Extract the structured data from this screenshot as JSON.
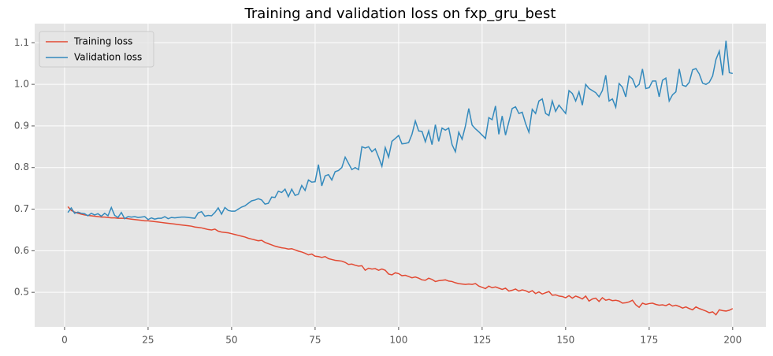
{
  "chart_data": {
    "type": "line",
    "title": "Training and validation loss on fxp_gru_best",
    "x": [
      1,
      2,
      3,
      4,
      5,
      6,
      7,
      8,
      9,
      10,
      11,
      12,
      13,
      14,
      15,
      16,
      17,
      18,
      19,
      20,
      21,
      22,
      23,
      24,
      25,
      26,
      27,
      28,
      29,
      30,
      31,
      32,
      33,
      34,
      35,
      36,
      37,
      38,
      39,
      40,
      41,
      42,
      43,
      44,
      45,
      46,
      47,
      48,
      49,
      50,
      51,
      52,
      53,
      54,
      55,
      56,
      57,
      58,
      59,
      60,
      61,
      62,
      63,
      64,
      65,
      66,
      67,
      68,
      69,
      70,
      71,
      72,
      73,
      74,
      75,
      76,
      77,
      78,
      79,
      80,
      81,
      82,
      83,
      84,
      85,
      86,
      87,
      88,
      89,
      90,
      91,
      92,
      93,
      94,
      95,
      96,
      97,
      98,
      99,
      100,
      101,
      102,
      103,
      104,
      105,
      106,
      107,
      108,
      109,
      110,
      111,
      112,
      113,
      114,
      115,
      116,
      117,
      118,
      119,
      120,
      121,
      122,
      123,
      124,
      125,
      126,
      127,
      128,
      129,
      130,
      131,
      132,
      133,
      134,
      135,
      136,
      137,
      138,
      139,
      140,
      141,
      142,
      143,
      144,
      145,
      146,
      147,
      148,
      149,
      150,
      151,
      152,
      153,
      154,
      155,
      156,
      157,
      158,
      159,
      160,
      161,
      162,
      163,
      164,
      165,
      166,
      167,
      168,
      169,
      170,
      171,
      172,
      173,
      174,
      175,
      176,
      177,
      178,
      179,
      180,
      181,
      182,
      183,
      184,
      185,
      186,
      187,
      188,
      189,
      190,
      191,
      192,
      193,
      194,
      195,
      196,
      197,
      198,
      199,
      200
    ],
    "series": [
      {
        "name": "Training loss",
        "color": "#e24a33",
        "values": [
          0.706,
          0.697,
          0.693,
          0.69,
          0.688,
          0.686,
          0.685,
          0.684,
          0.683,
          0.682,
          0.681,
          0.681,
          0.68,
          0.679,
          0.679,
          0.678,
          0.678,
          0.678,
          0.677,
          0.676,
          0.675,
          0.674,
          0.673,
          0.672,
          0.672,
          0.671,
          0.67,
          0.669,
          0.668,
          0.667,
          0.666,
          0.665,
          0.664,
          0.663,
          0.662,
          0.661,
          0.66,
          0.659,
          0.657,
          0.656,
          0.655,
          0.653,
          0.651,
          0.65,
          0.652,
          0.647,
          0.645,
          0.644,
          0.643,
          0.641,
          0.639,
          0.637,
          0.635,
          0.633,
          0.63,
          0.628,
          0.626,
          0.624,
          0.625,
          0.62,
          0.617,
          0.614,
          0.611,
          0.609,
          0.607,
          0.606,
          0.604,
          0.605,
          0.602,
          0.599,
          0.597,
          0.594,
          0.59,
          0.592,
          0.587,
          0.586,
          0.584,
          0.586,
          0.581,
          0.579,
          0.577,
          0.576,
          0.575,
          0.572,
          0.567,
          0.568,
          0.565,
          0.563,
          0.564,
          0.553,
          0.558,
          0.556,
          0.557,
          0.553,
          0.556,
          0.553,
          0.544,
          0.542,
          0.547,
          0.545,
          0.54,
          0.541,
          0.538,
          0.535,
          0.537,
          0.534,
          0.53,
          0.529,
          0.534,
          0.531,
          0.526,
          0.528,
          0.529,
          0.53,
          0.527,
          0.526,
          0.523,
          0.521,
          0.52,
          0.519,
          0.52,
          0.519,
          0.521,
          0.515,
          0.512,
          0.509,
          0.515,
          0.511,
          0.513,
          0.51,
          0.507,
          0.51,
          0.503,
          0.505,
          0.508,
          0.503,
          0.506,
          0.504,
          0.5,
          0.504,
          0.497,
          0.501,
          0.496,
          0.499,
          0.502,
          0.493,
          0.494,
          0.491,
          0.49,
          0.487,
          0.492,
          0.486,
          0.491,
          0.488,
          0.484,
          0.491,
          0.479,
          0.484,
          0.486,
          0.478,
          0.487,
          0.481,
          0.483,
          0.48,
          0.481,
          0.479,
          0.474,
          0.475,
          0.477,
          0.481,
          0.47,
          0.464,
          0.474,
          0.471,
          0.473,
          0.474,
          0.471,
          0.469,
          0.47,
          0.468,
          0.472,
          0.467,
          0.469,
          0.466,
          0.462,
          0.465,
          0.461,
          0.458,
          0.465,
          0.461,
          0.458,
          0.455,
          0.451,
          0.453,
          0.446,
          0.458,
          0.456,
          0.455,
          0.457,
          0.461
        ]
      },
      {
        "name": "Validation loss",
        "color": "#348abd",
        "values": [
          0.692,
          0.703,
          0.69,
          0.693,
          0.69,
          0.689,
          0.684,
          0.69,
          0.686,
          0.689,
          0.683,
          0.69,
          0.684,
          0.704,
          0.685,
          0.68,
          0.692,
          0.677,
          0.682,
          0.681,
          0.682,
          0.68,
          0.681,
          0.682,
          0.675,
          0.679,
          0.676,
          0.678,
          0.678,
          0.682,
          0.677,
          0.68,
          0.679,
          0.68,
          0.681,
          0.681,
          0.68,
          0.679,
          0.678,
          0.691,
          0.694,
          0.683,
          0.685,
          0.684,
          0.692,
          0.703,
          0.688,
          0.704,
          0.697,
          0.695,
          0.695,
          0.7,
          0.705,
          0.708,
          0.714,
          0.72,
          0.722,
          0.725,
          0.722,
          0.712,
          0.714,
          0.729,
          0.728,
          0.743,
          0.74,
          0.748,
          0.73,
          0.748,
          0.733,
          0.736,
          0.757,
          0.745,
          0.77,
          0.765,
          0.766,
          0.807,
          0.756,
          0.78,
          0.783,
          0.77,
          0.79,
          0.793,
          0.8,
          0.825,
          0.81,
          0.795,
          0.8,
          0.795,
          0.85,
          0.847,
          0.85,
          0.838,
          0.845,
          0.825,
          0.803,
          0.848,
          0.825,
          0.863,
          0.87,
          0.877,
          0.857,
          0.858,
          0.86,
          0.88,
          0.912,
          0.888,
          0.887,
          0.862,
          0.888,
          0.855,
          0.903,
          0.863,
          0.895,
          0.89,
          0.895,
          0.855,
          0.838,
          0.885,
          0.868,
          0.9,
          0.942,
          0.902,
          0.893,
          0.886,
          0.878,
          0.87,
          0.92,
          0.915,
          0.948,
          0.88,
          0.924,
          0.878,
          0.91,
          0.942,
          0.946,
          0.93,
          0.933,
          0.906,
          0.885,
          0.94,
          0.93,
          0.96,
          0.965,
          0.93,
          0.925,
          0.96,
          0.935,
          0.95,
          0.94,
          0.93,
          0.985,
          0.978,
          0.96,
          0.982,
          0.95,
          1.0,
          0.99,
          0.985,
          0.98,
          0.97,
          0.985,
          1.022,
          0.96,
          0.965,
          0.945,
          1.002,
          0.993,
          0.97,
          1.02,
          1.013,
          0.993,
          1.0,
          1.037,
          0.99,
          0.992,
          1.008,
          1.008,
          0.97,
          1.01,
          1.015,
          0.96,
          0.975,
          0.982,
          1.037,
          0.998,
          0.995,
          1.005,
          1.035,
          1.038,
          1.025,
          1.003,
          1.0,
          1.005,
          1.02,
          1.06,
          1.08,
          1.022,
          1.105,
          1.028,
          1.026
        ]
      }
    ],
    "xlim": [
      -8.95,
      209.95
    ],
    "xticks": [
      0,
      25,
      50,
      75,
      100,
      125,
      150,
      175,
      200
    ],
    "ylim": [
      0.417,
      1.146
    ],
    "yticks": [
      0.5,
      0.6,
      0.7,
      0.8,
      0.9,
      {
        "value": 1,
        "label": "1.0"
      },
      1.1
    ],
    "grid": true,
    "legend": "upper left"
  }
}
